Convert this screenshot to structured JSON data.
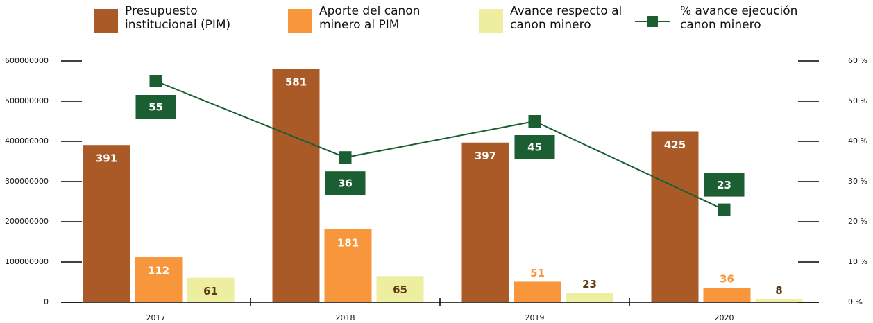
{
  "chart_data": {
    "type": "bar",
    "categories": [
      "2017",
      "2018",
      "2019",
      "2020"
    ],
    "series": [
      {
        "name": "Presupuesto institucional (PIM)",
        "color": "#a95a27",
        "values": [
          391000000,
          581000000,
          397000000,
          425000000
        ],
        "value_labels": [
          "391",
          "581",
          "397",
          "425"
        ]
      },
      {
        "name": "Aporte del canon minero al PIM",
        "color": "#f7963a",
        "values": [
          112000000,
          181000000,
          51000000,
          36000000
        ],
        "value_labels": [
          "112",
          "181",
          "51",
          "36"
        ]
      },
      {
        "name": "Avance respecto al canon minero",
        "color": "#eeeea0",
        "values": [
          61000000,
          65000000,
          23000000,
          8000000
        ],
        "value_labels": [
          "61",
          "65",
          "23",
          "8"
        ]
      },
      {
        "name": "% avance ejecución canon minero",
        "color": "#1a5e32",
        "type": "line",
        "axis": "y2",
        "values": [
          55,
          36,
          45,
          23
        ]
      }
    ],
    "ylim": [
      0,
      600000000
    ],
    "yticks": [
      0,
      100000000,
      200000000,
      300000000,
      400000000,
      500000000,
      600000000
    ],
    "y2lim": [
      0,
      60
    ],
    "y2ticks": [
      {
        "value": 0,
        "label": "0 %"
      },
      {
        "value": 10,
        "label": "10 %"
      },
      {
        "value": 20,
        "label": "20 %"
      },
      {
        "value": 30,
        "label": "30 %"
      },
      {
        "value": 40,
        "label": "40 %"
      },
      {
        "value": 50,
        "label": "50 %"
      },
      {
        "value": 60,
        "label": "60 %"
      }
    ],
    "legend": "top"
  }
}
